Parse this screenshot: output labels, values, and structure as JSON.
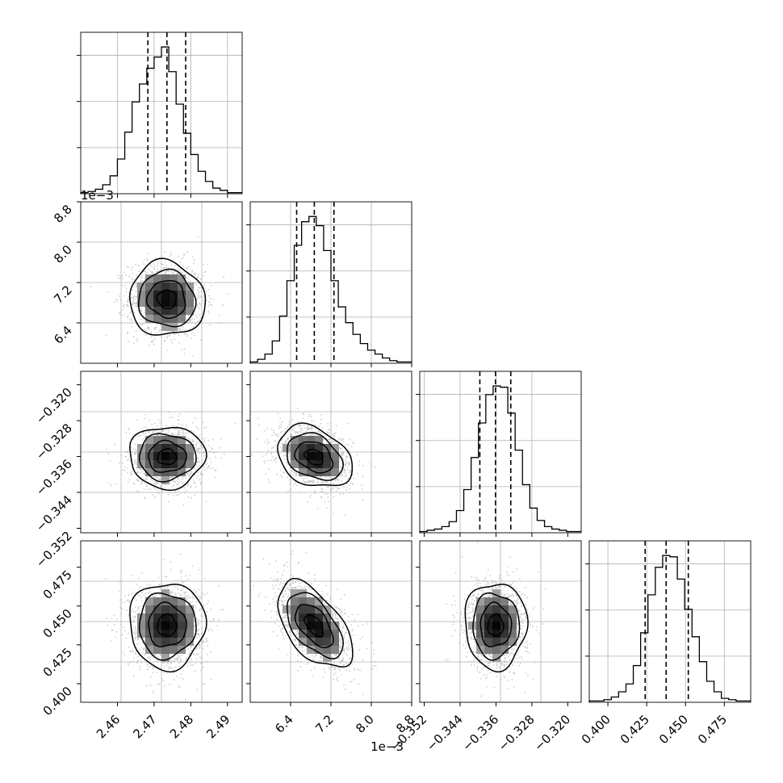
{
  "chart_data": {
    "type": "corner",
    "params": [
      {
        "range": [
          2.45,
          2.494
        ],
        "ticks": [
          2.46,
          2.47,
          2.48,
          2.49
        ],
        "tick_labels": [
          "2.46",
          "2.47",
          "2.48",
          "2.49"
        ],
        "offset_text": "",
        "quantiles": [
          2.4683,
          2.4735,
          2.4786
        ]
      },
      {
        "range": [
          5.6,
          8.8
        ],
        "ticks": [
          6.4,
          7.2,
          8.0,
          8.8
        ],
        "tick_labels": [
          "6.4",
          "7.2",
          "8.0",
          "8.8"
        ],
        "offset_text": "1e−3",
        "quantiles": [
          6.52,
          6.87,
          7.26
        ]
      },
      {
        "range": [
          -0.353,
          -0.317
        ],
        "ticks": [
          -0.352,
          -0.344,
          -0.336,
          -0.328,
          -0.32
        ],
        "tick_labels": [
          "−0.352",
          "−0.344",
          "−0.336",
          "−0.328",
          "−0.320"
        ],
        "offset_text": "",
        "quantiles": [
          -0.3396,
          -0.3361,
          -0.3327
        ]
      },
      {
        "range": [
          0.388,
          0.492
        ],
        "ticks": [
          0.4,
          0.425,
          0.45,
          0.475
        ],
        "tick_labels": [
          "0.400",
          "0.425",
          "0.450",
          "0.475"
        ],
        "offset_text": "",
        "quantiles": [
          0.424,
          0.4375,
          0.4518
        ]
      }
    ],
    "histograms": [
      [
        1,
        2,
        4,
        8,
        16,
        31,
        55,
        82,
        98,
        112,
        122,
        131,
        109,
        80,
        54,
        35,
        20,
        11,
        5,
        3,
        1,
        1
      ],
      [
        1,
        3,
        7,
        17,
        36,
        63,
        90,
        108,
        112,
        105,
        86,
        63,
        43,
        31,
        22,
        15,
        10,
        7,
        4,
        2,
        1,
        1
      ],
      [
        1,
        2,
        3,
        5,
        9,
        18,
        35,
        61,
        89,
        112,
        119,
        118,
        97,
        67,
        39,
        20,
        10,
        5,
        3,
        2,
        1,
        1
      ],
      [
        1,
        1,
        2,
        4,
        8,
        14,
        28,
        53,
        82,
        103,
        112,
        111,
        94,
        71,
        50,
        31,
        16,
        8,
        3,
        2,
        1,
        1
      ]
    ],
    "correlations": [
      [
        0,
        1,
        -0.05
      ],
      [
        0,
        2,
        0.0
      ],
      [
        0,
        3,
        0.0
      ],
      [
        1,
        2,
        -0.3
      ],
      [
        1,
        3,
        -0.55
      ],
      [
        2,
        3,
        0.0
      ]
    ],
    "grid": true
  }
}
